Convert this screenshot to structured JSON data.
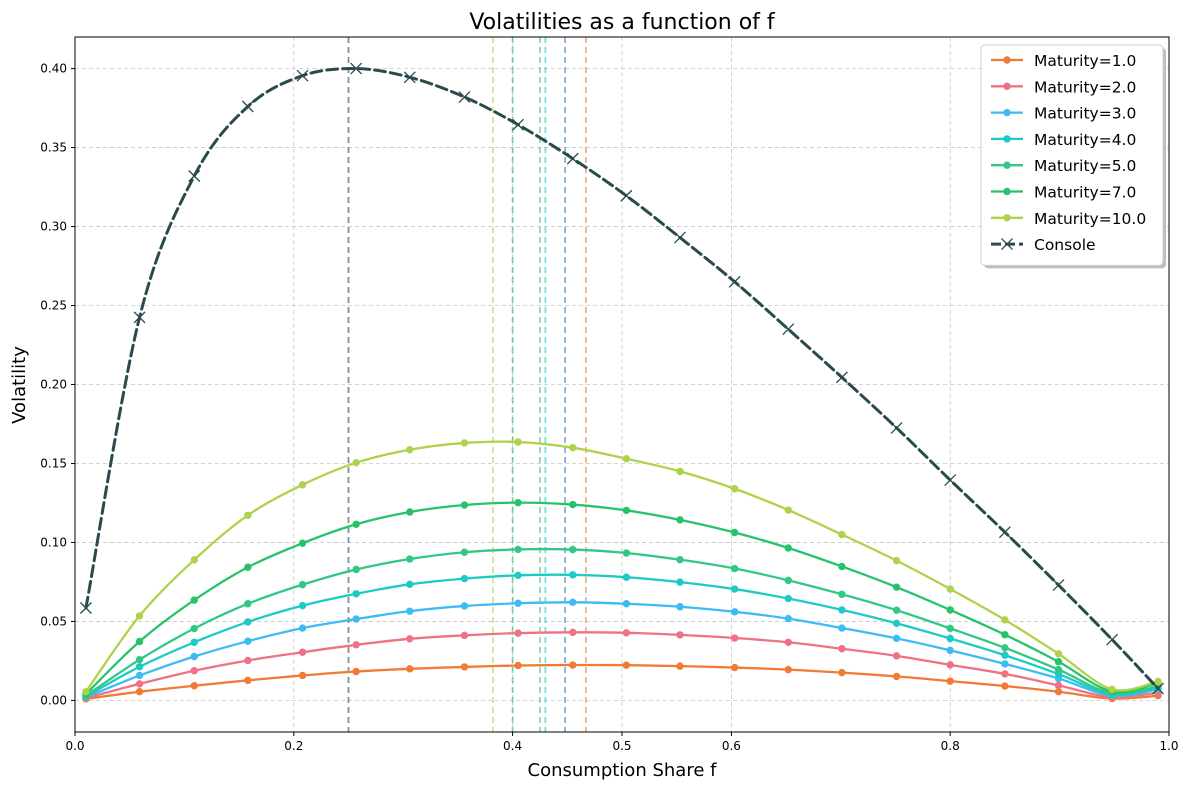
{
  "chart_data": {
    "type": "line",
    "title": "Volatilities as a function of f",
    "xlabel": "Consumption Share f",
    "ylabel": "Volatility",
    "xlim": [
      0.0,
      1.0
    ],
    "ylim": [
      -0.02,
      0.42
    ],
    "xticks": [
      {
        "value": 0.0,
        "label": "0.0"
      },
      {
        "value": 0.2,
        "label": "0.2"
      },
      {
        "value": 0.4,
        "label": "0.4"
      },
      {
        "value": 0.5,
        "label": "0.5"
      },
      {
        "value": 0.6,
        "label": "0.6"
      },
      {
        "value": 0.8,
        "label": "0.8"
      },
      {
        "value": 1.0,
        "label": "1.0"
      }
    ],
    "yticks": [
      {
        "value": 0.0,
        "label": "0.00"
      },
      {
        "value": 0.05,
        "label": "0.05"
      },
      {
        "value": 0.1,
        "label": "0.10"
      },
      {
        "value": 0.15,
        "label": "0.15"
      },
      {
        "value": 0.2,
        "label": "0.20"
      },
      {
        "value": 0.25,
        "label": "0.25"
      },
      {
        "value": 0.3,
        "label": "0.30"
      },
      {
        "value": 0.35,
        "label": "0.35"
      },
      {
        "value": 0.4,
        "label": "0.40"
      }
    ],
    "grid": true,
    "legend_position": "top-right",
    "x": [
      0.01,
      0.059,
      0.109,
      0.158,
      0.208,
      0.257,
      0.306,
      0.356,
      0.405,
      0.455,
      0.504,
      0.553,
      0.603,
      0.652,
      0.701,
      0.751,
      0.8,
      0.85,
      0.899,
      0.948,
      0.99
    ],
    "series": [
      {
        "name": "Maturity=1.0",
        "color": "#f07b35",
        "marker": "circle",
        "peak_line_x": 0.467,
        "values": [
          0.001,
          0.0055,
          0.0093,
          0.0127,
          0.0158,
          0.0183,
          0.02,
          0.0212,
          0.0221,
          0.0224,
          0.0223,
          0.0217,
          0.0208,
          0.0195,
          0.0176,
          0.0152,
          0.0122,
          0.0091,
          0.0055,
          0.0012,
          0.003
        ]
      },
      {
        "name": "Maturity=2.0",
        "color": "#ee7284",
        "marker": "circle",
        "peak_line_x": 0.448,
        "values": [
          0.0015,
          0.0105,
          0.0188,
          0.0253,
          0.0305,
          0.0352,
          0.039,
          0.0412,
          0.0426,
          0.0431,
          0.0428,
          0.0415,
          0.0395,
          0.0368,
          0.0327,
          0.0282,
          0.0225,
          0.0168,
          0.0095,
          0.002,
          0.005
        ]
      },
      {
        "name": "Maturity=3.0",
        "color": "#3dbbf4",
        "marker": "circle",
        "peak_line_x": 0.448,
        "values": [
          0.002,
          0.0158,
          0.0278,
          0.0375,
          0.0458,
          0.0515,
          0.0565,
          0.0598,
          0.0615,
          0.0621,
          0.0612,
          0.0593,
          0.0561,
          0.0518,
          0.0458,
          0.0393,
          0.0317,
          0.0231,
          0.0139,
          0.003,
          0.007
        ]
      },
      {
        "name": "Maturity=4.0",
        "color": "#1ecac4",
        "marker": "circle",
        "peak_line_x": 0.43,
        "values": [
          0.0025,
          0.0213,
          0.0368,
          0.0497,
          0.06,
          0.0675,
          0.0735,
          0.0771,
          0.0792,
          0.0795,
          0.078,
          0.0749,
          0.0705,
          0.0645,
          0.0573,
          0.0488,
          0.0392,
          0.0286,
          0.0167,
          0.0037,
          0.008
        ]
      },
      {
        "name": "Maturity=5.0",
        "color": "#31c886",
        "marker": "circle",
        "peak_line_x": 0.425,
        "values": [
          0.003,
          0.0258,
          0.0455,
          0.0612,
          0.0733,
          0.0829,
          0.0895,
          0.0938,
          0.0956,
          0.0955,
          0.0933,
          0.0891,
          0.0835,
          0.076,
          0.0672,
          0.0571,
          0.0456,
          0.0333,
          0.0195,
          0.0045,
          0.009
        ]
      },
      {
        "name": "Maturity=7.0",
        "color": "#27c36b",
        "marker": "circle",
        "peak_line_x": 0.4,
        "values": [
          0.004,
          0.0373,
          0.0635,
          0.0843,
          0.0995,
          0.1115,
          0.1193,
          0.1237,
          0.1252,
          0.124,
          0.1203,
          0.1143,
          0.1063,
          0.0965,
          0.0848,
          0.0717,
          0.0573,
          0.0416,
          0.0245,
          0.0056,
          0.011
        ]
      },
      {
        "name": "Maturity=10.0",
        "color": "#aed24a",
        "marker": "circle",
        "peak_line_x": 0.382,
        "values": [
          0.0055,
          0.0535,
          0.089,
          0.1172,
          0.1365,
          0.1505,
          0.1587,
          0.163,
          0.1636,
          0.16,
          0.153,
          0.145,
          0.134,
          0.1205,
          0.105,
          0.0885,
          0.0705,
          0.051,
          0.0295,
          0.007,
          0.012
        ]
      },
      {
        "name": "Console",
        "color": "#2a4b4d",
        "marker": "x",
        "dashed": true,
        "peak_line_x": 0.25,
        "values": [
          0.0585,
          0.2425,
          0.332,
          0.376,
          0.3955,
          0.4,
          0.3945,
          0.382,
          0.3645,
          0.343,
          0.3195,
          0.293,
          0.265,
          0.235,
          0.2045,
          0.1725,
          0.1395,
          0.1065,
          0.073,
          0.0385,
          0.0075
        ]
      }
    ]
  }
}
